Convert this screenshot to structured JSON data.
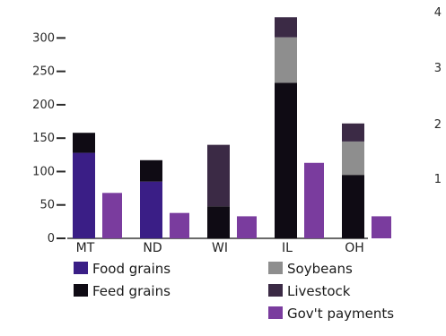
{
  "chart_data": {
    "type": "bar",
    "stacked_with_side_bar": true,
    "categories": [
      "MT",
      "ND",
      "WI",
      "IL",
      "OH"
    ],
    "yticks": [
      0,
      50,
      100,
      150,
      200,
      250,
      300
    ],
    "ylim": [
      0,
      330
    ],
    "series": [
      {
        "name": "Food grains",
        "color": "#3a1e86",
        "stack": "main",
        "values": [
          128,
          85,
          0,
          0,
          0
        ]
      },
      {
        "name": "Feed grains",
        "color": "#0f0b14",
        "stack": "main",
        "values": [
          30,
          32,
          48,
          233,
          95
        ]
      },
      {
        "name": "Soybeans",
        "color": "#8e8e8e",
        "stack": "main",
        "values": [
          0,
          0,
          0,
          68,
          50
        ]
      },
      {
        "name": "Livestock",
        "color": "#3b2a45",
        "stack": "main",
        "values": [
          0,
          0,
          92,
          30,
          27
        ]
      },
      {
        "name": "Gov't payments",
        "color": "#7a3c9e",
        "stack": "side",
        "values": [
          68,
          38,
          33,
          113,
          33
        ]
      }
    ],
    "legend": [
      {
        "label": "Food grains",
        "color": "#3a1e86"
      },
      {
        "label": "Feed grains",
        "color": "#0f0b14"
      },
      {
        "label": "Soybeans",
        "color": "#8e8e8e"
      },
      {
        "label": "Livestock",
        "color": "#3b2a45"
      },
      {
        "label": "Gov't payments",
        "color": "#7a3c9e"
      }
    ],
    "edge_labels": [
      "4",
      "3",
      "2",
      "1"
    ],
    "grid": false,
    "legend_position": "bottom"
  }
}
